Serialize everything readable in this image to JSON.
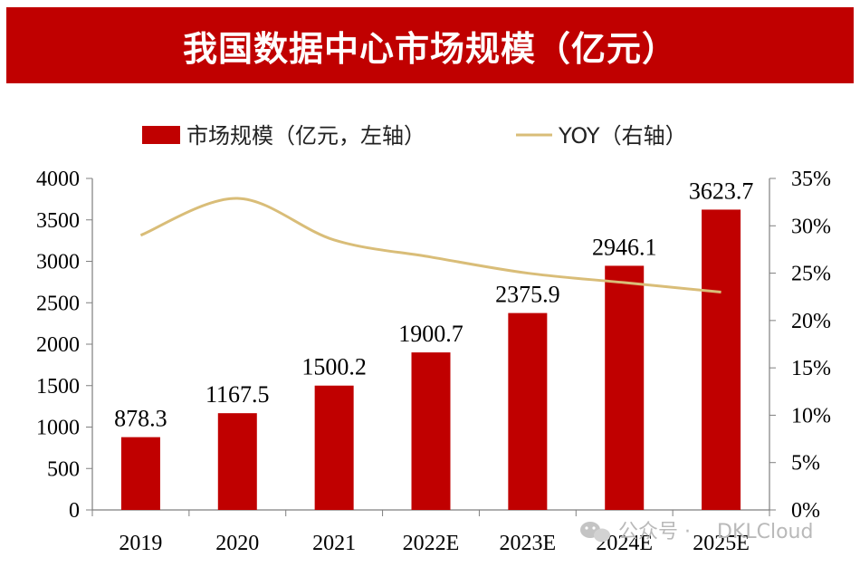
{
  "title": "我国数据中心市场规模（亿元）",
  "watermark": {
    "prefix": "公众号 ·",
    "name": "DKLCloud"
  },
  "colors": {
    "bar": "#c00000",
    "line": "#d9bd78",
    "title_bg": "#c00000",
    "title_text": "#ffffff"
  },
  "chart_data": {
    "type": "bar+line",
    "title": "我国数据中心市场规模（亿元）",
    "categories": [
      "2019",
      "2020",
      "2021",
      "2022E",
      "2023E",
      "2024E",
      "2025E"
    ],
    "series": [
      {
        "name": "市场规模（亿元，左轴）",
        "type": "bar",
        "axis": "left",
        "values": [
          878.3,
          1167.5,
          1500.2,
          1900.7,
          2375.9,
          2946.1,
          3623.7
        ],
        "labels": [
          "878.3",
          "1167.5",
          "1500.2",
          "1900.7",
          "2375.9",
          "2946.1",
          "3623.7"
        ]
      },
      {
        "name": "YOY（右轴）",
        "type": "line",
        "axis": "right",
        "values": [
          29.0,
          32.9,
          28.5,
          26.7,
          25.0,
          24.0,
          23.0
        ]
      }
    ],
    "left_axis": {
      "ylim": [
        0,
        4000
      ],
      "ticks": [
        "0",
        "500",
        "1000",
        "1500",
        "2000",
        "2500",
        "3000",
        "3500",
        "4000"
      ]
    },
    "right_axis": {
      "ylim": [
        0,
        35
      ],
      "ticks": [
        "0%",
        "5%",
        "10%",
        "15%",
        "20%",
        "25%",
        "30%",
        "35%"
      ]
    },
    "legend_position": "top-center",
    "grid": false
  }
}
